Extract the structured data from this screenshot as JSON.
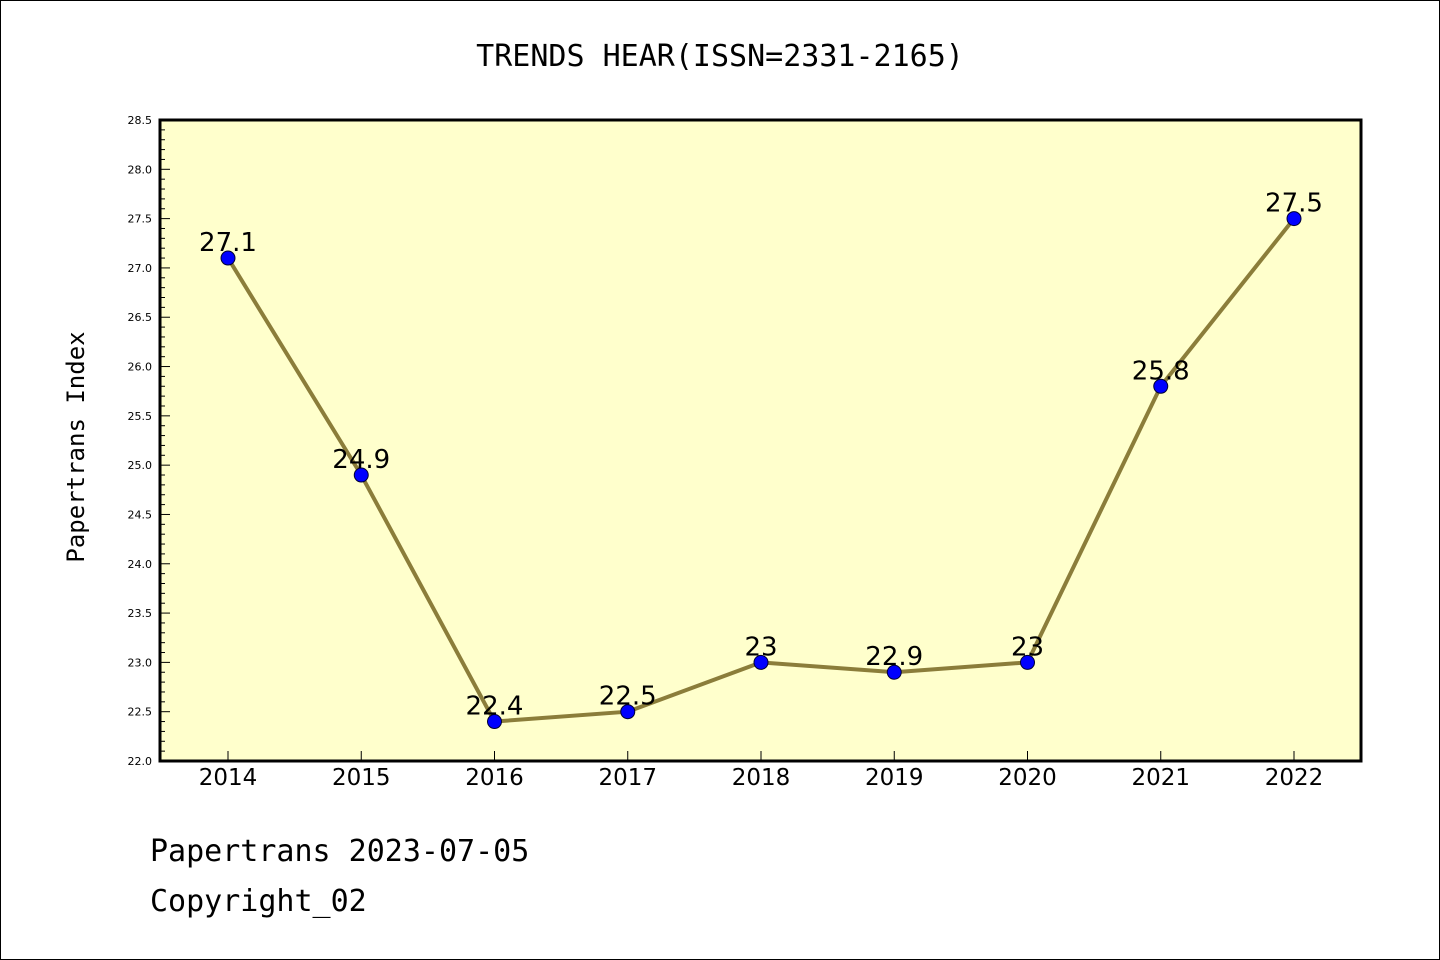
{
  "chart_data": {
    "type": "line",
    "title": "TRENDS HEAR(ISSN=2331-2165)",
    "ylabel": "Papertrans Index",
    "xlabel": "",
    "categories": [
      "2014",
      "2015",
      "2016",
      "2017",
      "2018",
      "2019",
      "2020",
      "2021",
      "2022"
    ],
    "values": [
      27.1,
      24.9,
      22.4,
      22.5,
      23.0,
      22.9,
      23.0,
      25.8,
      27.5
    ],
    "data_labels": [
      "27.1",
      "24.9",
      "22.4",
      "22.5",
      "23",
      "22.9",
      "23",
      "25.8",
      "27.5"
    ],
    "ylim": [
      22.0,
      28.5
    ],
    "yticks": [
      "22.0",
      "22.5",
      "23.0",
      "23.5",
      "24.0",
      "24.5",
      "25.0",
      "25.5",
      "26.0",
      "26.5",
      "27.0",
      "27.5",
      "28.0",
      "28.5"
    ],
    "grid": false,
    "colors": {
      "plot_background": "#ffffcc",
      "line": "#8b7d3a",
      "marker": "#0000ff"
    }
  },
  "footer": {
    "line1": "Papertrans 2023-07-05",
    "line2": "Copyright_02"
  }
}
